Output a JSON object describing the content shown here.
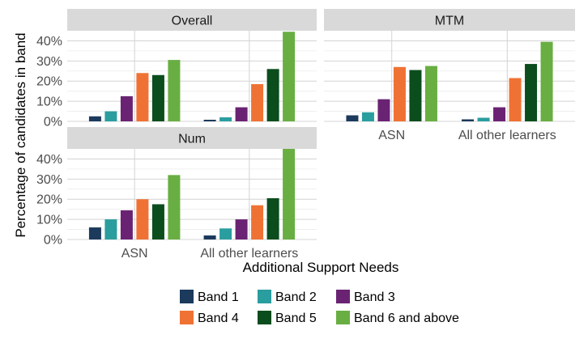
{
  "chart_data": {
    "type": "bar",
    "xlabel": "Additional Support Needs",
    "ylabel": "Percentage of candidates in band",
    "categories": [
      "ASN",
      "All other learners"
    ],
    "ylim": [
      0,
      45
    ],
    "y_ticks": [
      0,
      10,
      20,
      30,
      40
    ],
    "y_tick_labels": [
      "0%",
      "10%",
      "20%",
      "30%",
      "40%"
    ],
    "grid": true,
    "legend_position": "bottom",
    "bands": [
      "Band 1",
      "Band 2",
      "Band 3",
      "Band 4",
      "Band 5",
      "Band 6 and above"
    ],
    "colors": [
      "#1b3a5c",
      "#2a9d9f",
      "#6a2373",
      "#ef7234",
      "#0b4d1d",
      "#69ae42"
    ],
    "panels": [
      {
        "title": "Overall",
        "series": [
          {
            "name": "Band 1",
            "values": [
              2.5,
              0.8
            ]
          },
          {
            "name": "Band 2",
            "values": [
              5.0,
              2.0
            ]
          },
          {
            "name": "Band 3",
            "values": [
              12.5,
              7.0
            ]
          },
          {
            "name": "Band 4",
            "values": [
              24.0,
              18.5
            ]
          },
          {
            "name": "Band 5",
            "values": [
              23.0,
              26.0
            ]
          },
          {
            "name": "Band 6 and above",
            "values": [
              30.5,
              44.5
            ]
          }
        ]
      },
      {
        "title": "MTM",
        "series": [
          {
            "name": "Band 1",
            "values": [
              3.0,
              1.0
            ]
          },
          {
            "name": "Band 2",
            "values": [
              4.5,
              1.8
            ]
          },
          {
            "name": "Band 3",
            "values": [
              11.0,
              7.0
            ]
          },
          {
            "name": "Band 4",
            "values": [
              27.0,
              21.5
            ]
          },
          {
            "name": "Band 5",
            "values": [
              25.5,
              28.5
            ]
          },
          {
            "name": "Band 6 and above",
            "values": [
              27.5,
              39.5
            ]
          }
        ]
      },
      {
        "title": "Num",
        "series": [
          {
            "name": "Band 1",
            "values": [
              6.0,
              2.0
            ]
          },
          {
            "name": "Band 2",
            "values": [
              10.0,
              5.5
            ]
          },
          {
            "name": "Band 3",
            "values": [
              14.5,
              10.0
            ]
          },
          {
            "name": "Band 4",
            "values": [
              20.0,
              17.0
            ]
          },
          {
            "name": "Band 5",
            "values": [
              17.5,
              20.5
            ]
          },
          {
            "name": "Band 6 and above",
            "values": [
              32.0,
              45.0
            ]
          }
        ]
      }
    ]
  }
}
